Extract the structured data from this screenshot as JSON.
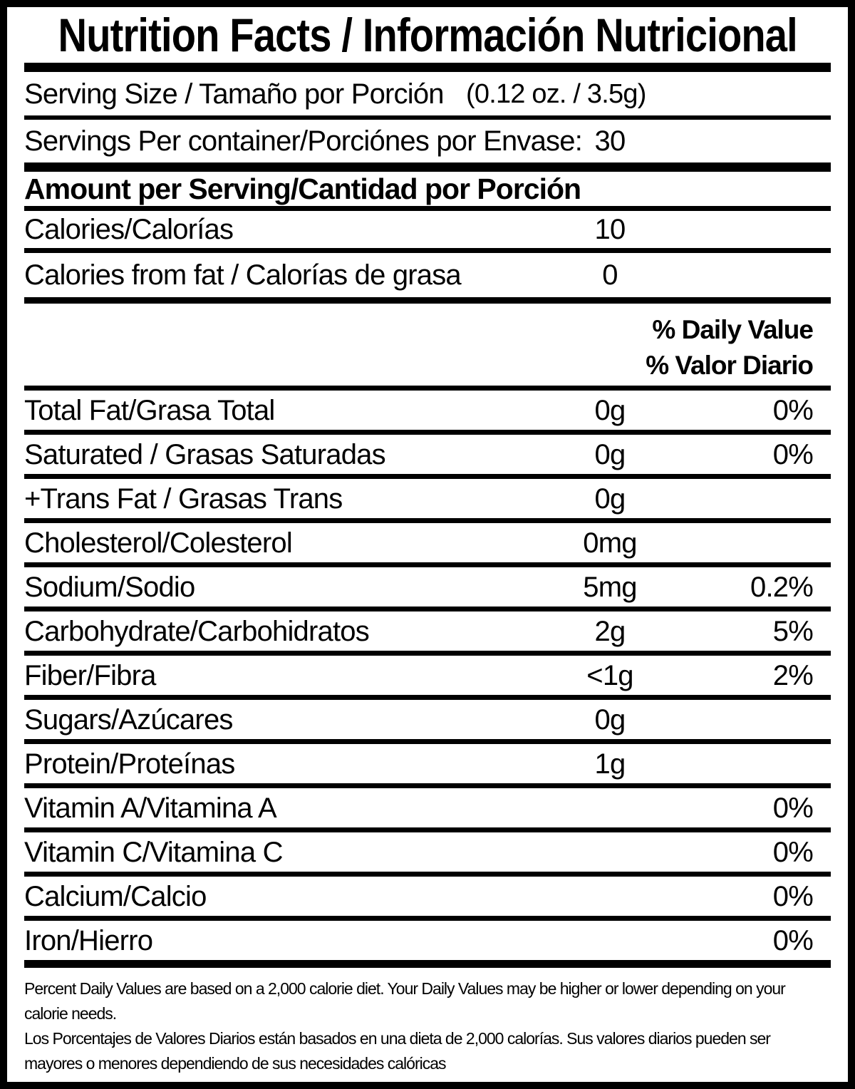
{
  "label": {
    "title": "Nutrition Facts / Información Nutricional",
    "serving_size": {
      "label": "Serving Size / Tamaño por Porción",
      "value": "(0.12 oz. / 3.5g)"
    },
    "servings_per_container": {
      "label": "Servings Per container/Porciónes por Envase:",
      "value": "30"
    },
    "amount_per_serving_header": "Amount per Serving/Cantidad por Porción",
    "calories": {
      "label": "Calories/Calorías",
      "value": "10"
    },
    "calories_from_fat": {
      "label": "Calories from fat / Calorías de grasa",
      "value": "0"
    },
    "daily_value_header_en": "% Daily Value",
    "daily_value_header_es": "% Valor Diario",
    "nutrients": [
      {
        "label": "Total Fat/Grasa Total",
        "amount": "0g",
        "dv": "0%"
      },
      {
        "label": "Saturated / Grasas Saturadas",
        "amount": "0g",
        "dv": "0%"
      },
      {
        "label": "+Trans Fat / Grasas Trans",
        "amount": "0g",
        "dv": ""
      },
      {
        "label": "Cholesterol/Colesterol",
        "amount": "0mg",
        "dv": ""
      },
      {
        "label": "Sodium/Sodio",
        "amount": "5mg",
        "dv": "0.2%"
      },
      {
        "label": "Carbohydrate/Carbohidratos",
        "amount": "2g",
        "dv": "5%"
      },
      {
        "label": "Fiber/Fibra",
        "amount": "<1g",
        "dv": "2%"
      },
      {
        "label": "Sugars/Azúcares",
        "amount": "0g",
        "dv": ""
      },
      {
        "label": "Protein/Proteínas",
        "amount": "1g",
        "dv": ""
      },
      {
        "label": "Vitamin A/Vitamina A",
        "amount": "",
        "dv": "0%"
      },
      {
        "label": "Vitamin C/Vitamina C",
        "amount": "",
        "dv": "0%"
      },
      {
        "label": "Calcium/Calcio",
        "amount": "",
        "dv": "0%"
      },
      {
        "label": "Iron/Hierro",
        "amount": "",
        "dv": "0%"
      }
    ],
    "footnotes": {
      "en": "Percent Daily Values are based on a 2,000 calorie diet. Your Daily Values may be higher or lower depending on your calorie needs.",
      "es": "Los Porcentajes de Valores Diarios están basados en una dieta de 2,000 calorías. Sus valores diarios pueden ser mayores o menores dependiendo de sus necesidades calóricas"
    },
    "colors": {
      "text": "#000000",
      "background": "#ffffff"
    }
  }
}
